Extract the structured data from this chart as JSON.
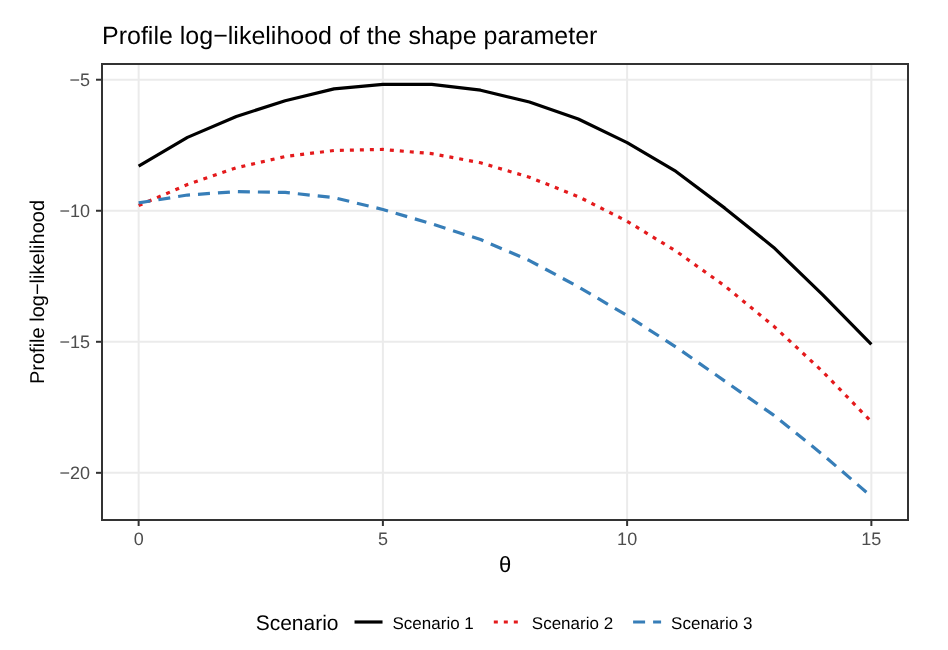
{
  "chart_data": {
    "type": "line",
    "title": "Profile log−likelihood of the shape parameter",
    "xlabel": "θ",
    "ylabel": "Profile log−likelihood",
    "legend_title": "Scenario",
    "x": [
      0,
      1,
      2,
      3,
      4,
      5,
      6,
      7,
      8,
      9,
      10,
      11,
      12,
      13,
      14,
      15
    ],
    "series": [
      {
        "name": "Scenario 1",
        "color": "#000000",
        "line_style": "solid",
        "values": [
          -8.3,
          -7.2,
          -6.4,
          -5.8,
          -5.35,
          -5.18,
          -5.18,
          -5.4,
          -5.85,
          -6.5,
          -7.4,
          -8.5,
          -9.9,
          -11.4,
          -13.2,
          -15.1
        ]
      },
      {
        "name": "Scenario 2",
        "color": "#e41a1c",
        "line_style": "dotted",
        "values": [
          -9.8,
          -9.0,
          -8.36,
          -7.93,
          -7.7,
          -7.66,
          -7.82,
          -8.17,
          -8.72,
          -9.46,
          -10.4,
          -11.54,
          -12.87,
          -14.4,
          -16.13,
          -18.05
        ]
      },
      {
        "name": "Scenario 3",
        "color": "#377eb8",
        "line_style": "dashed",
        "values": [
          -9.7,
          -9.4,
          -9.27,
          -9.3,
          -9.5,
          -9.95,
          -10.5,
          -11.1,
          -11.9,
          -12.9,
          -14.0,
          -15.2,
          -16.5,
          -17.8,
          -19.3,
          -20.9
        ]
      }
    ],
    "xlim": [
      -0.75,
      15.75
    ],
    "xticks": [
      0,
      5,
      10,
      15
    ],
    "ylim": [
      -21.8,
      -4.4
    ],
    "yticks": [
      -20,
      -15,
      -10,
      -5
    ],
    "grid": true,
    "legend": "bottom",
    "marker": "none"
  }
}
